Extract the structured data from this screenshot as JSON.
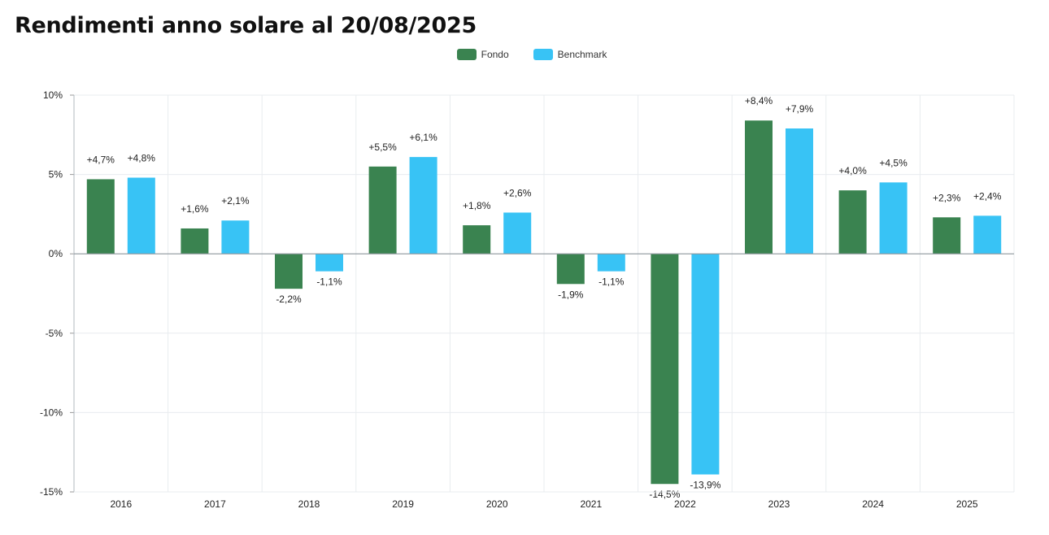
{
  "page": {
    "title": "Rendimenti anno solare al 20/08/2025"
  },
  "legend": {
    "items": [
      {
        "label": "Fondo",
        "color": "#3a8350"
      },
      {
        "label": "Benchmark",
        "color": "#38c3f5"
      }
    ]
  },
  "chart_data": {
    "type": "bar",
    "title": "Rendimenti anno solare al 20/08/2025",
    "categories": [
      "2016",
      "2017",
      "2018",
      "2019",
      "2020",
      "2021",
      "2022",
      "2023",
      "2024",
      "2025"
    ],
    "series": [
      {
        "name": "Fondo",
        "color": "#3a8350",
        "values": [
          4.7,
          1.6,
          -2.2,
          5.5,
          1.8,
          -1.9,
          -14.5,
          8.4,
          4.0,
          2.3
        ],
        "labels": [
          "+4,7%",
          "+1,6%",
          "-2,2%",
          "+5,5%",
          "+1,8%",
          "-1,9%",
          "-14,5%",
          "+8,4%",
          "+4,0%",
          "+2,3%"
        ]
      },
      {
        "name": "Benchmark",
        "color": "#38c3f5",
        "values": [
          4.8,
          2.1,
          -1.1,
          6.1,
          2.6,
          -1.1,
          -13.9,
          7.9,
          4.5,
          2.4
        ],
        "labels": [
          "+4,8%",
          "+2,1%",
          "-1,1%",
          "+6,1%",
          "+2,6%",
          "-1,1%",
          "-13,9%",
          "+7,9%",
          "+4,5%",
          "+2,4%"
        ]
      }
    ],
    "ylim": [
      -15,
      10
    ],
    "yticks": [
      10,
      5,
      0,
      -5,
      -10,
      -15
    ],
    "ytick_labels": [
      "10%",
      "5%",
      "0%",
      "-5%",
      "-10%",
      "-15%"
    ],
    "grid": true,
    "legend_position": "top-center"
  }
}
